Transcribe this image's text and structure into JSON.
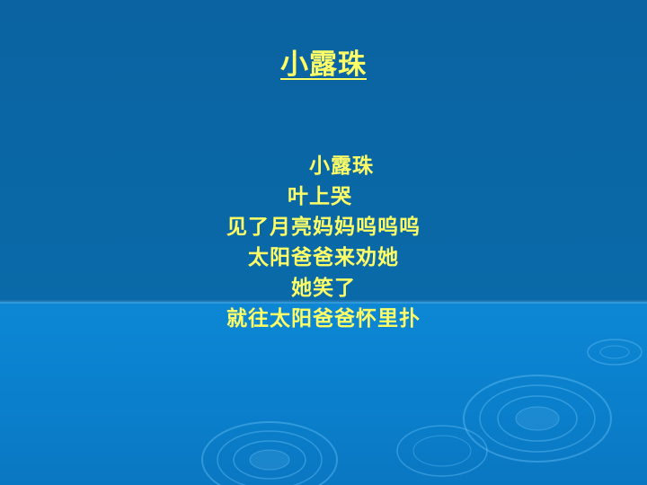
{
  "slide": {
    "title": "小露珠",
    "poem_lines": [
      "小露珠",
      "叶上哭",
      "见了月亮妈妈呜呜呜",
      "太阳爸爸来劝她",
      "她笑了",
      "就往太阳爸爸怀里扑"
    ]
  },
  "colors": {
    "background_top": "#0b63a1",
    "background_bottom": "#0a7fcb",
    "text": "#ffff66"
  }
}
